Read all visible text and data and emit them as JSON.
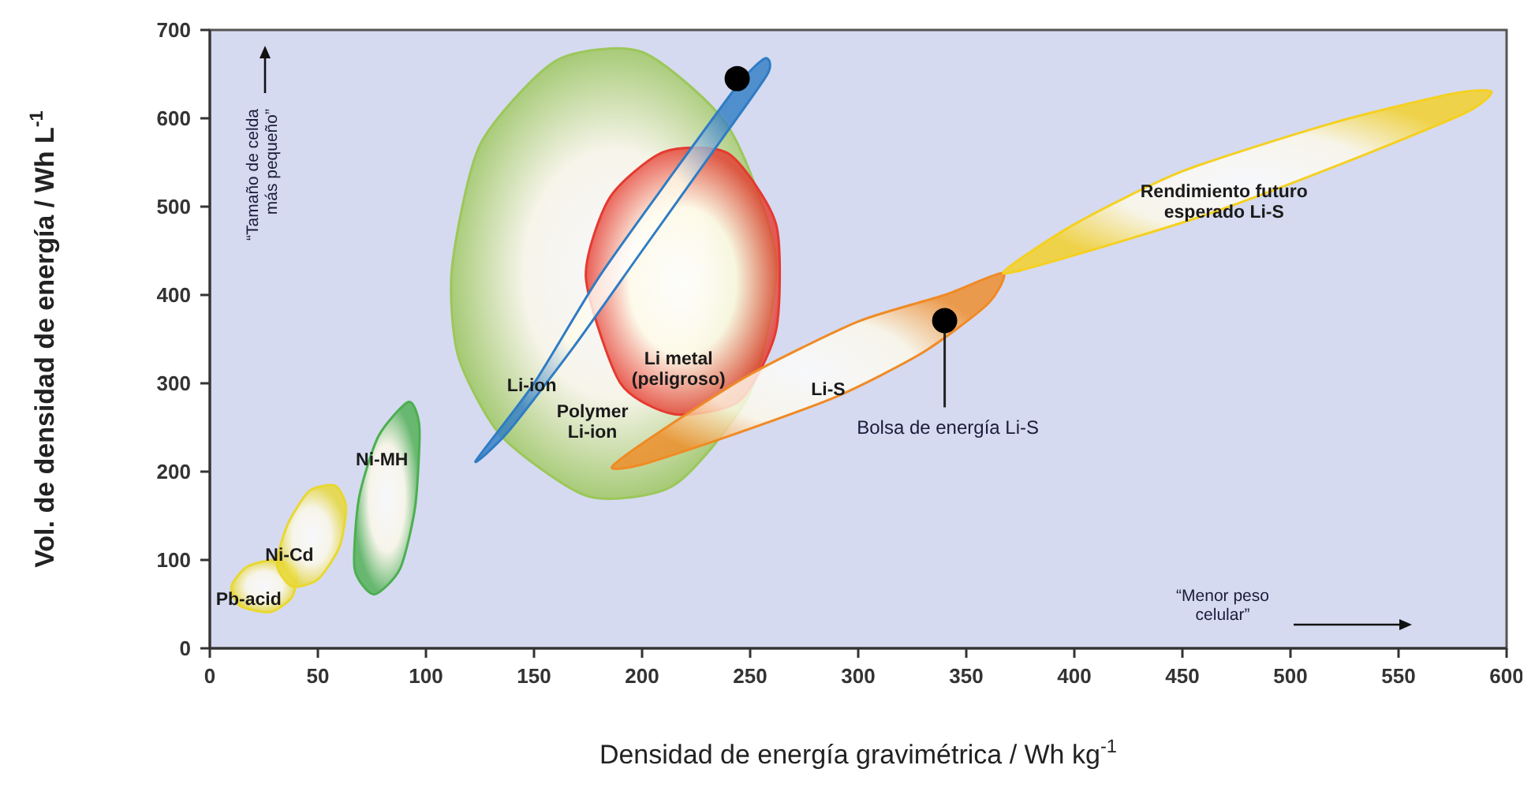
{
  "chart_data": {
    "type": "area",
    "xlabel": "Densidad de energía gravimétrica  / Wh kg$^{-1}$",
    "ylabel": "Vol. de densidad de energía  / Wh L$^{-1}$",
    "xlim": [
      0,
      600
    ],
    "xticks": [
      0,
      50,
      100,
      150,
      200,
      250,
      300,
      350,
      400,
      450,
      500,
      550,
      600
    ],
    "ylim": [
      0,
      700
    ],
    "yticks": [
      0,
      100,
      200,
      300,
      400,
      500,
      600,
      700
    ],
    "series": [
      {
        "name": "Pb-acid",
        "color": "#e8d830",
        "x": [
          14,
          10,
          17,
          30,
          40,
          38,
          28
        ],
        "values": [
          48,
          70,
          92,
          100,
          88,
          58,
          41
        ]
      },
      {
        "name": "Ni-Cd",
        "color": "#e8d830",
        "x": [
          31,
          36,
          46,
          58,
          63,
          60,
          50,
          38
        ],
        "values": [
          95,
          140,
          178,
          184,
          160,
          115,
          78,
          70
        ]
      },
      {
        "name": "Ni-MH",
        "color": "#4caf50",
        "x": [
          78,
          92,
          97,
          95,
          88,
          76,
          67,
          69
        ],
        "values": [
          240,
          279,
          250,
          160,
          90,
          61,
          90,
          170
        ]
      },
      {
        "name": "Polymer Li-ion",
        "color": "#9cc75a",
        "x": [
          175,
          135,
          115,
          112,
          125,
          160,
          200,
          240,
          262,
          250,
          215
        ],
        "values": [
          172,
          240,
          330,
          430,
          570,
          665,
          675,
          590,
          440,
          290,
          185
        ]
      },
      {
        "name": "Li metal (peligroso)",
        "color": "#e53a2f",
        "x": [
          215,
          190,
          174,
          185,
          210,
          240,
          262,
          262,
          245
        ],
        "values": [
          265,
          300,
          420,
          510,
          562,
          560,
          480,
          360,
          280
        ]
      },
      {
        "name": "Li-ion",
        "color": "#2f7cc4",
        "x": [
          123,
          150,
          180,
          215,
          245,
          257,
          258,
          235,
          200,
          168,
          138
        ],
        "values": [
          212,
          300,
          420,
          540,
          640,
          668,
          650,
          570,
          450,
          340,
          245
        ]
      },
      {
        "name": "Li-S",
        "color": "#f08a24",
        "x": [
          290,
          240,
          200,
          186,
          205,
          250,
          300,
          340,
          367,
          360,
          330
        ],
        "values": [
          285,
          240,
          208,
          205,
          240,
          310,
          370,
          400,
          425,
          390,
          335
        ]
      },
      {
        "name": "Rendimiento futuro esperado Li-S",
        "color": "#f5d020",
        "x": [
          460,
          400,
          367,
          400,
          450,
          520,
          575,
          593,
          580,
          520
        ],
        "values": [
          490,
          445,
          425,
          480,
          540,
          595,
          628,
          630,
          605,
          545
        ]
      },
      {
        "type": "scatter",
        "marker": "circle",
        "color": "#000000",
        "x": [
          244
        ],
        "values": [
          645
        ]
      },
      {
        "type": "scatter",
        "marker": "circle",
        "name": "Bolsa de energía Li-S",
        "color": "#000000",
        "x": [
          340
        ],
        "values": [
          371
        ]
      }
    ],
    "annotations": [
      "“Tamaño de celda más pequeño”",
      "“Menor peso celular”"
    ]
  }
}
